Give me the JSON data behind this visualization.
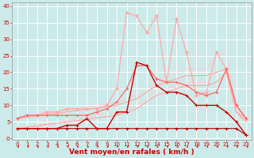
{
  "background_color": "#cceaea",
  "grid_color": "#ffffff",
  "xlabel": "Vent moyen/en rafales ( km/h )",
  "xlabel_color": "#cc0000",
  "xlabel_fontsize": 6.5,
  "xticks": [
    0,
    1,
    2,
    3,
    4,
    5,
    6,
    7,
    8,
    9,
    10,
    11,
    12,
    13,
    14,
    15,
    16,
    17,
    18,
    19,
    20,
    21,
    22,
    23
  ],
  "yticks": [
    0,
    5,
    10,
    15,
    20,
    25,
    30,
    35,
    40
  ],
  "ylim": [
    -0.5,
    41
  ],
  "xlim": [
    -0.5,
    23.5
  ],
  "tick_color": "#cc0000",
  "tick_fontsize": 5.0,
  "lines": [
    {
      "x": [
        0,
        1,
        2,
        3,
        4,
        5,
        6,
        7,
        8,
        9,
        10,
        11,
        12,
        13,
        14,
        15,
        16,
        17,
        18,
        19,
        20,
        21,
        22,
        23
      ],
      "y": [
        3,
        3,
        3,
        3,
        3,
        3,
        3,
        3,
        3,
        3,
        3,
        3,
        3,
        3,
        3,
        3,
        3,
        3,
        3,
        3,
        3,
        3,
        3,
        1
      ],
      "color": "#aa0000",
      "linewidth": 0.8,
      "marker": "+",
      "markersize": 2.5,
      "alpha": 1.0,
      "zorder": 5
    },
    {
      "x": [
        0,
        1,
        2,
        3,
        4,
        5,
        6,
        7,
        8,
        9,
        10,
        11,
        12,
        13,
        14,
        15,
        16,
        17,
        18,
        19,
        20,
        21,
        22,
        23
      ],
      "y": [
        3,
        3,
        3,
        3,
        3,
        4,
        4,
        6,
        3,
        3,
        8,
        8,
        23,
        22,
        16,
        14,
        14,
        13,
        10,
        10,
        10,
        8,
        5,
        1
      ],
      "color": "#cc0000",
      "linewidth": 1.0,
      "marker": "+",
      "markersize": 2.5,
      "alpha": 1.0,
      "zorder": 5
    },
    {
      "x": [
        0,
        1,
        2,
        3,
        4,
        5,
        6,
        7,
        8,
        9,
        10,
        11,
        12,
        13,
        14,
        15,
        16,
        17,
        18,
        19,
        20,
        21,
        22,
        23
      ],
      "y": [
        6,
        6.4,
        6.8,
        7.2,
        7.6,
        8,
        8.4,
        8.8,
        9.2,
        9.6,
        10,
        11,
        12,
        14,
        16,
        17,
        18,
        19,
        19,
        19,
        20,
        21,
        8,
        6
      ],
      "color": "#ffaaaa",
      "linewidth": 0.9,
      "marker": null,
      "markersize": 0,
      "alpha": 1.0,
      "zorder": 2
    },
    {
      "x": [
        0,
        1,
        2,
        3,
        4,
        5,
        6,
        7,
        8,
        9,
        10,
        11,
        12,
        13,
        14,
        15,
        16,
        17,
        18,
        19,
        20,
        21,
        22,
        23
      ],
      "y": [
        3,
        3.4,
        3.8,
        4.2,
        4.6,
        5,
        5.4,
        5.8,
        6.2,
        6.6,
        7,
        8,
        9,
        11,
        13,
        14,
        15,
        16,
        16,
        16,
        17,
        20,
        8,
        5
      ],
      "color": "#ffaaaa",
      "linewidth": 0.9,
      "marker": null,
      "markersize": 0,
      "alpha": 1.0,
      "zorder": 2
    },
    {
      "x": [
        0,
        1,
        2,
        3,
        4,
        5,
        6,
        7,
        8,
        9,
        10,
        11,
        12,
        13,
        14,
        15,
        16,
        17,
        18,
        19,
        20,
        21,
        22,
        23
      ],
      "y": [
        6,
        6.5,
        7,
        7.5,
        8,
        8.5,
        9,
        9.5,
        10,
        10.5,
        11,
        12,
        13,
        15,
        18,
        19,
        20,
        21,
        21,
        21,
        25,
        26,
        9,
        6
      ],
      "color": "#ffcccc",
      "linewidth": 0.8,
      "marker": null,
      "markersize": 0,
      "alpha": 1.0,
      "zorder": 1
    },
    {
      "x": [
        0,
        1,
        2,
        3,
        4,
        5,
        6,
        7,
        8,
        9,
        10,
        11,
        12,
        13,
        14,
        15,
        16,
        17,
        18,
        19,
        20,
        21,
        22,
        23
      ],
      "y": [
        3,
        3.5,
        4,
        4.5,
        5,
        5.5,
        6,
        6.5,
        7,
        7.5,
        8,
        9,
        10,
        12,
        15,
        15,
        16,
        17,
        17,
        17,
        20,
        20,
        8,
        5
      ],
      "color": "#ffcccc",
      "linewidth": 0.8,
      "marker": null,
      "markersize": 0,
      "alpha": 1.0,
      "zorder": 1
    },
    {
      "x": [
        0,
        1,
        2,
        3,
        4,
        5,
        6,
        7,
        8,
        9,
        10,
        11,
        12,
        13,
        14,
        15,
        16,
        17,
        18,
        19,
        20,
        21,
        22,
        23
      ],
      "y": [
        6,
        7,
        7,
        7,
        7,
        7,
        7,
        7,
        8,
        9,
        11,
        15,
        22,
        22,
        18,
        17,
        17,
        16,
        14,
        13,
        14,
        21,
        10,
        6
      ],
      "color": "#ff6666",
      "linewidth": 0.9,
      "marker": "+",
      "markersize": 2.5,
      "alpha": 1.0,
      "zorder": 4
    },
    {
      "x": [
        0,
        1,
        2,
        3,
        4,
        5,
        6,
        7,
        8,
        9,
        10,
        11,
        12,
        13,
        14,
        15,
        16,
        17,
        18,
        19,
        20,
        21,
        22,
        23
      ],
      "y": [
        6,
        7,
        7,
        8,
        8,
        9,
        9,
        9,
        9,
        10,
        15,
        38,
        37,
        32,
        37,
        17,
        36,
        26,
        13,
        14,
        26,
        21,
        10,
        6
      ],
      "color": "#ffaaaa",
      "linewidth": 0.9,
      "marker": "*",
      "markersize": 3,
      "alpha": 1.0,
      "zorder": 3
    }
  ]
}
